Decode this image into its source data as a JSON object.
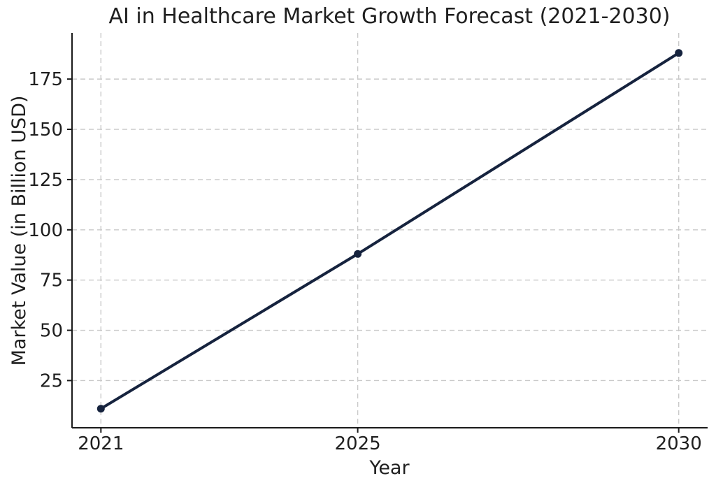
{
  "chart_data": {
    "type": "line",
    "title": "AI in Healthcare Market Growth Forecast (2021-2030)",
    "xlabel": "Year",
    "ylabel": "Market Value (in Billion USD)",
    "x": [
      2021,
      2025,
      2030
    ],
    "series": [
      {
        "name": "Market Value",
        "values": [
          11,
          88,
          188
        ]
      }
    ],
    "xtick_labels": [
      "2021",
      "2025",
      "2030"
    ],
    "ytick_values": [
      25,
      50,
      75,
      100,
      125,
      150,
      175
    ],
    "ytick_labels": [
      "25",
      "50",
      "75",
      "100",
      "125",
      "150",
      "175"
    ],
    "xlim": [
      2020.55,
      2030.45
    ],
    "ylim": [
      1.5,
      198
    ],
    "grid": "dashed",
    "legend": "none",
    "colors": {
      "line": "#16233e",
      "marker": "#16233e",
      "grid": "#c9c9c9",
      "spine": "#1a1a1a",
      "text": "#1f1f1f"
    }
  }
}
